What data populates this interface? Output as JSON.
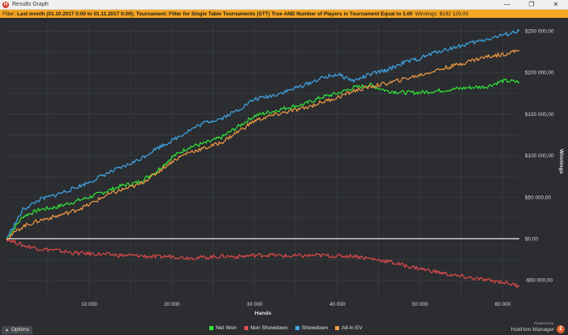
{
  "window": {
    "title": "Results Graph",
    "app_icon_letter": "H",
    "controls": {
      "minimize": "—",
      "restore": "❐",
      "close": "✕"
    }
  },
  "filter": {
    "label": "Filter:",
    "value": "Last month (01.10.2017 0:00 to 01.11.2017 0:00); Tournament: Filter for Single Table Tournaments (STT) True AND Number of Players in Tournament Equal to 3.00",
    "winnings_label": "Winnings:",
    "winnings_value": "$192 120,00"
  },
  "colors": {
    "background": "#2b2d30",
    "grid": "#3d4044",
    "zero_line": "#ffffff",
    "net_won": "#31e639",
    "non_showdown": "#e04a4a",
    "showdown": "#3fa6e8",
    "all_in_ev": "#f19a45",
    "filter_bar": "#f5a623",
    "brand": "#e8632c"
  },
  "chart_data": {
    "type": "line",
    "xlabel": "Hands",
    "ylabel": "Winnings",
    "xlim": [
      0,
      62000
    ],
    "ylim": [
      -70000,
      262000
    ],
    "x_ticks": [
      10000,
      20000,
      30000,
      40000,
      50000,
      60000
    ],
    "x_tick_labels": [
      "10 000",
      "20 000",
      "30 000",
      "40 000",
      "50 000",
      "60 000"
    ],
    "y_ticks": [
      250000,
      200000,
      150000,
      100000,
      50000,
      0,
      -50000
    ],
    "y_tick_labels": [
      "$250 000,00",
      "$200 000,00",
      "$150 000,00",
      "$100 000,00",
      "$50 000,00",
      "$0,00",
      "-$50 000,00"
    ],
    "grid": true,
    "legend_position": "bottom",
    "series": [
      {
        "name": "Net Won",
        "color_key": "net_won",
        "x": [
          0,
          2000,
          4000,
          6000,
          8000,
          10000,
          12000,
          14000,
          16000,
          18000,
          20000,
          22000,
          24000,
          26000,
          28000,
          30000,
          32000,
          34000,
          36000,
          38000,
          40000,
          42000,
          44000,
          46000,
          48000,
          50000,
          52000,
          54000,
          56000,
          58000,
          60000,
          62000
        ],
        "y": [
          0,
          27000,
          35000,
          38000,
          44000,
          50000,
          57000,
          64000,
          68000,
          80000,
          98000,
          110000,
          115000,
          122000,
          135000,
          148000,
          153000,
          158000,
          162000,
          170000,
          175000,
          182000,
          185000,
          178000,
          176000,
          176000,
          178000,
          180000,
          182000,
          183000,
          190000,
          189000
        ]
      },
      {
        "name": "Non Showdown",
        "color_key": "non_showdown",
        "x": [
          0,
          2000,
          4000,
          6000,
          8000,
          10000,
          12000,
          14000,
          16000,
          18000,
          20000,
          22000,
          24000,
          26000,
          28000,
          30000,
          32000,
          34000,
          36000,
          38000,
          40000,
          42000,
          44000,
          46000,
          48000,
          50000,
          52000,
          54000,
          56000,
          58000,
          60000,
          62000
        ],
        "y": [
          0,
          -8000,
          -12000,
          -14000,
          -17000,
          -18000,
          -19000,
          -20000,
          -20500,
          -22000,
          -21000,
          -23000,
          -22500,
          -21000,
          -21500,
          -20000,
          -19500,
          -21000,
          -20500,
          -20000,
          -21000,
          -20500,
          -24000,
          -27000,
          -32000,
          -36000,
          -40000,
          -44000,
          -47000,
          -50000,
          -52000,
          -57000
        ]
      },
      {
        "name": "Showdown",
        "color_key": "showdown",
        "x": [
          0,
          2000,
          4000,
          6000,
          8000,
          10000,
          12000,
          14000,
          16000,
          18000,
          20000,
          22000,
          24000,
          26000,
          28000,
          30000,
          32000,
          34000,
          36000,
          38000,
          40000,
          42000,
          44000,
          46000,
          48000,
          50000,
          52000,
          54000,
          56000,
          58000,
          60000,
          62000
        ],
        "y": [
          0,
          35000,
          47000,
          53000,
          60000,
          68000,
          78000,
          86000,
          95000,
          108000,
          118000,
          130000,
          140000,
          145000,
          155000,
          168000,
          172000,
          178000,
          185000,
          193000,
          198000,
          190000,
          198000,
          203000,
          212000,
          217000,
          225000,
          230000,
          235000,
          240000,
          245000,
          250000
        ]
      },
      {
        "name": "All-In EV",
        "color_key": "all_in_ev",
        "x": [
          0,
          2000,
          4000,
          6000,
          8000,
          10000,
          12000,
          14000,
          16000,
          18000,
          20000,
          22000,
          24000,
          26000,
          28000,
          30000,
          32000,
          34000,
          36000,
          38000,
          40000,
          42000,
          44000,
          46000,
          48000,
          50000,
          52000,
          54000,
          56000,
          58000,
          60000,
          62000
        ],
        "y": [
          0,
          15000,
          22000,
          27000,
          33000,
          41000,
          52000,
          59000,
          65000,
          78000,
          93000,
          104000,
          109000,
          116000,
          129000,
          142000,
          148000,
          153000,
          157000,
          164000,
          170000,
          178000,
          183000,
          187000,
          192000,
          197000,
          203000,
          208000,
          214000,
          219000,
          222000,
          227000
        ]
      }
    ]
  },
  "legend": {
    "items": [
      {
        "label": "Net Won",
        "color_key": "net_won"
      },
      {
        "label": "Non Showdown",
        "color_key": "non_showdown"
      },
      {
        "label": "Showdown",
        "color_key": "showdown"
      },
      {
        "label": "All-In EV",
        "color_key": "all_in_ev"
      }
    ]
  },
  "footer": {
    "options_arrow": "▲",
    "options_label": "Options",
    "powered_by": "Powered by",
    "brand_name": "Hold'em Manager",
    "brand_badge": "2"
  }
}
